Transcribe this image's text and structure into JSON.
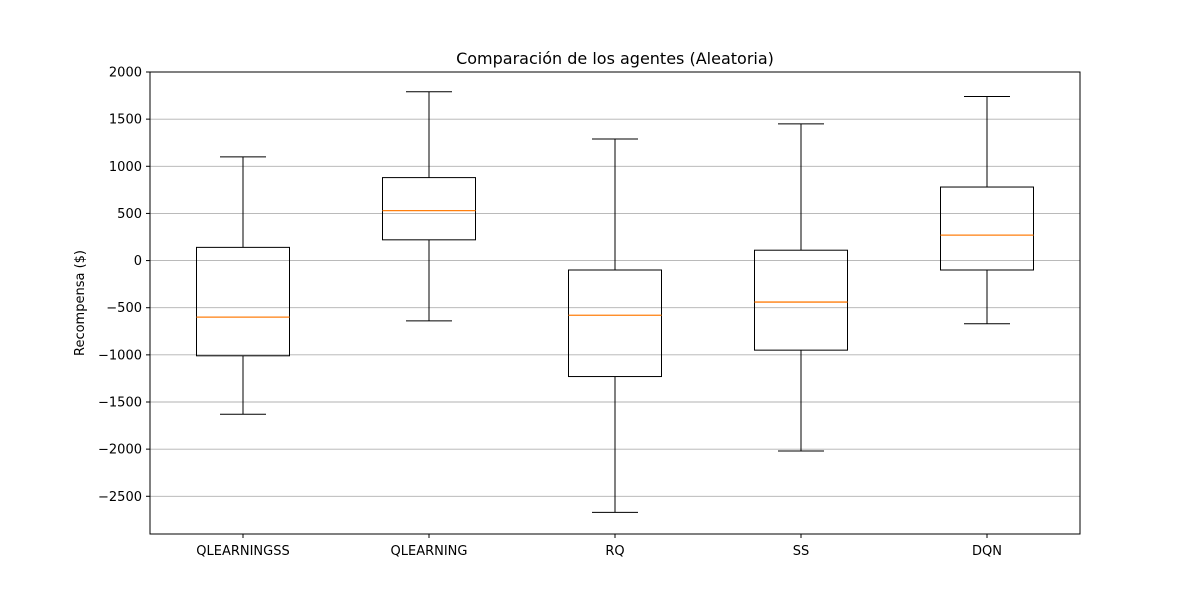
{
  "chart_data": {
    "type": "boxplot",
    "title": "Comparación de los agentes (Aleatoria)",
    "xlabel": "",
    "ylabel": "Recompensa ($)",
    "ylim": [
      -2900,
      2000
    ],
    "yticks": [
      -2500,
      -2000,
      -1500,
      -1000,
      -500,
      0,
      500,
      1000,
      1500,
      2000
    ],
    "ytick_labels": [
      "−2500",
      "−2000",
      "−1500",
      "−1000",
      "−500",
      "0",
      "500",
      "1000",
      "1500",
      "2000"
    ],
    "grid": {
      "y": true,
      "x": false
    },
    "colors": {
      "box": "#000000",
      "median": "#ff7f0e",
      "grid": "#b0b0b0"
    },
    "categories": [
      "QLEARNINGSS",
      "QLEARNING",
      "RQ",
      "SS",
      "DQN"
    ],
    "boxes": [
      {
        "label": "QLEARNINGSS",
        "whisker_low": -1630,
        "q1": -1010,
        "median": -600,
        "q3": 140,
        "whisker_high": 1100
      },
      {
        "label": "QLEARNING",
        "whisker_low": -640,
        "q1": 220,
        "median": 530,
        "q3": 880,
        "whisker_high": 1790
      },
      {
        "label": "RQ",
        "whisker_low": -2670,
        "q1": -1230,
        "median": -580,
        "q3": -100,
        "whisker_high": 1290
      },
      {
        "label": "SS",
        "whisker_low": -2020,
        "q1": -950,
        "median": -440,
        "q3": 110,
        "whisker_high": 1450
      },
      {
        "label": "DQN",
        "whisker_low": -670,
        "q1": -100,
        "median": 270,
        "q3": 780,
        "whisker_high": 1740
      }
    ]
  }
}
